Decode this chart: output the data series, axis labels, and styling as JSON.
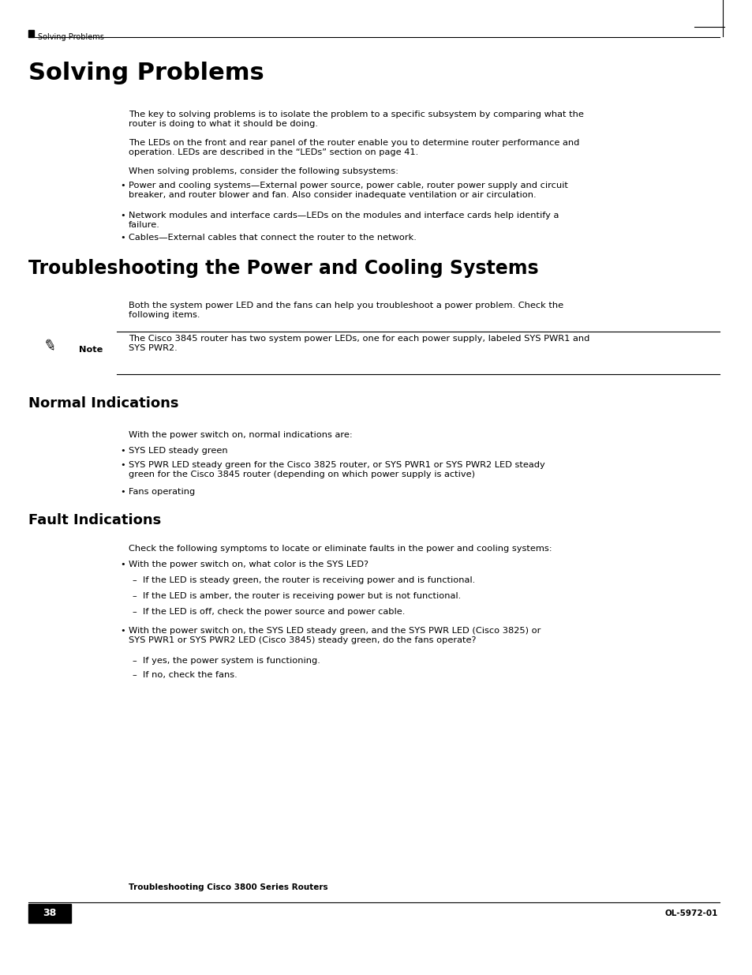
{
  "bg_color": "#ffffff",
  "text_color": "#000000",
  "link_color": "#1155cc",
  "body_font_size": 8.2,
  "title_font_size": 22,
  "section_font_size": 17,
  "sub_section_font_size": 13,
  "header_text": "Solving Problems",
  "footer_page_num": "38",
  "footer_center_text": "Troubleshooting Cisco 3800 Series Routers",
  "footer_right_text": "OL-5972-01",
  "main_title": "Solving Problems",
  "section1_title": "Troubleshooting the Power and Cooling Systems",
  "section2_title": "Normal Indications",
  "section3_title": "Fault Indications",
  "bullet_char": "•",
  "dash_char": "–",
  "p1": "The key to solving problems is to isolate the problem to a specific subsystem by comparing what the\nrouter is doing to what it should be doing.",
  "p2a": "The LEDs on the front and rear panel of the router enable you to determine router performance and\noperation. LEDs are described in the ",
  "p2b": "“LEDs” section on page 41",
  "p2c": ".",
  "p3": "When solving problems, consider the following subsystems:",
  "b1_1": "Power and cooling systems—External power source, power cable, router power supply and circuit\nbreaker, and router blower and fan. Also consider inadequate ventilation or air circulation.",
  "b1_2": "Network modules and interface cards—LEDs on the modules and interface cards help identify a\nfailure.",
  "b1_3": "Cables—External cables that connect the router to the network.",
  "p_ts": "Both the system power LED and the fans can help you troubleshoot a power problem. Check the\nfollowing items.",
  "note_text": "The Cisco 3845 router has two system power LEDs, one for each power supply, labeled SYS PWR1 and\nSYS PWR2.",
  "p_ni": "With the power switch on, normal indications are:",
  "bn_1": "SYS LED steady green",
  "bn_2": "SYS PWR LED steady green for the Cisco 3825 router, or SYS PWR1 or SYS PWR2 LED steady\ngreen for the Cisco 3845 router (depending on which power supply is active)",
  "bn_3": "Fans operating",
  "p_fi": "Check the following symptoms to locate or eliminate faults in the power and cooling systems:",
  "bf_1": "With the power switch on, what color is the SYS LED?",
  "bf_1a": "If the LED is steady green, the router is receiving power and is functional.",
  "bf_1b": "If the LED is amber, the router is receiving power but is not functional.",
  "bf_1c": "If the LED is off, check the power source and power cable.",
  "bf_2": "With the power switch on, the SYS LED steady green, and the SYS PWR LED (Cisco 3825) or\nSYS PWR1 or SYS PWR2 LED (Cisco 3845) steady green, do the fans operate?",
  "bf_2a": "If yes, the power system is functioning.",
  "bf_2b": "If no, check the fans."
}
